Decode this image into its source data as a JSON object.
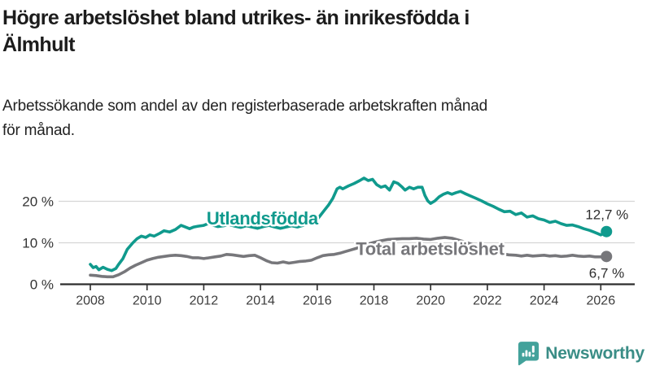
{
  "title": {
    "lines": [
      "Högre arbetslöshet bland utrikes- än inrikesfödda i",
      "Älmhult"
    ]
  },
  "subtitle": {
    "lines": [
      "Arbetssökande som andel av den registerbaserade arbetskraften månad",
      "för månad."
    ]
  },
  "logo": {
    "text": "Newsworthy",
    "icon_name": "newsworthy-speech-bubble-bar-chart-icon",
    "icon_color": "#43a29b",
    "text_color": "#3a8d86"
  },
  "chart_data": {
    "type": "line",
    "title": "Högre arbetslöshet bland utrikes- än inrikesfödda i Älmhult",
    "subtitle": "Arbetssökande som andel av den registerbaserade arbetskraften månad för månad.",
    "xlabel": "",
    "ylabel": "",
    "x_range": [
      2007.9,
      2026.3
    ],
    "ylim": [
      0,
      27
    ],
    "grid": "horizontal",
    "x_ticks": [
      2008,
      2010,
      2012,
      2014,
      2016,
      2018,
      2020,
      2022,
      2024,
      2026
    ],
    "y_ticks": [
      {
        "v": 0,
        "label": "0 %"
      },
      {
        "v": 10,
        "label": "10 %"
      },
      {
        "v": 20,
        "label": "20 %"
      }
    ],
    "colors": {
      "gridline": "#d6d6d6",
      "axis": "#2d2d2d",
      "tick_label": "#3c3c3c"
    },
    "legend_position": "inline-labels",
    "series": [
      {
        "name": "Utlandsfödda",
        "color": "#109a8d",
        "end_label": "12,7 %",
        "end_value": 12.7,
        "label_pos": {
          "year": 2012.1,
          "pct": 14.4
        },
        "points": [
          [
            2008.0,
            4.8
          ],
          [
            2008.1,
            4.0
          ],
          [
            2008.2,
            4.3
          ],
          [
            2008.3,
            3.5
          ],
          [
            2008.45,
            4.1
          ],
          [
            2008.6,
            3.6
          ],
          [
            2008.75,
            3.3
          ],
          [
            2008.9,
            3.8
          ],
          [
            2009.0,
            4.8
          ],
          [
            2009.15,
            6.2
          ],
          [
            2009.3,
            8.4
          ],
          [
            2009.5,
            10.0
          ],
          [
            2009.65,
            11.0
          ],
          [
            2009.8,
            11.6
          ],
          [
            2009.95,
            11.3
          ],
          [
            2010.1,
            11.9
          ],
          [
            2010.25,
            11.6
          ],
          [
            2010.45,
            12.3
          ],
          [
            2010.6,
            12.9
          ],
          [
            2010.8,
            12.6
          ],
          [
            2011.0,
            13.2
          ],
          [
            2011.2,
            14.2
          ],
          [
            2011.35,
            13.8
          ],
          [
            2011.5,
            13.4
          ],
          [
            2011.65,
            13.8
          ],
          [
            2011.8,
            14.0
          ],
          [
            2012.0,
            14.2
          ],
          [
            2012.15,
            14.6
          ],
          [
            2012.3,
            14.3
          ],
          [
            2012.5,
            13.9
          ],
          [
            2012.7,
            14.1
          ],
          [
            2012.9,
            14.4
          ],
          [
            2013.1,
            14.0
          ],
          [
            2013.3,
            13.7
          ],
          [
            2013.5,
            14.1
          ],
          [
            2013.7,
            13.8
          ],
          [
            2013.9,
            13.5
          ],
          [
            2014.1,
            13.9
          ],
          [
            2014.3,
            14.2
          ],
          [
            2014.5,
            13.8
          ],
          [
            2014.7,
            13.5
          ],
          [
            2014.9,
            13.8
          ],
          [
            2015.1,
            14.1
          ],
          [
            2015.3,
            13.8
          ],
          [
            2015.5,
            14.2
          ],
          [
            2015.7,
            14.6
          ],
          [
            2015.9,
            15.1
          ],
          [
            2016.0,
            15.6
          ],
          [
            2016.1,
            16.5
          ],
          [
            2016.25,
            17.8
          ],
          [
            2016.4,
            19.1
          ],
          [
            2016.55,
            20.7
          ],
          [
            2016.7,
            23.0
          ],
          [
            2016.8,
            23.4
          ],
          [
            2016.9,
            23.0
          ],
          [
            2017.1,
            23.7
          ],
          [
            2017.3,
            24.3
          ],
          [
            2017.5,
            25.0
          ],
          [
            2017.65,
            25.6
          ],
          [
            2017.8,
            25.0
          ],
          [
            2017.95,
            25.3
          ],
          [
            2018.1,
            24.0
          ],
          [
            2018.25,
            23.4
          ],
          [
            2018.4,
            23.7
          ],
          [
            2018.55,
            22.7
          ],
          [
            2018.7,
            24.7
          ],
          [
            2018.85,
            24.3
          ],
          [
            2019.0,
            23.4
          ],
          [
            2019.1,
            22.7
          ],
          [
            2019.25,
            23.4
          ],
          [
            2019.4,
            23.0
          ],
          [
            2019.55,
            23.4
          ],
          [
            2019.7,
            23.4
          ],
          [
            2019.8,
            21.4
          ],
          [
            2019.9,
            20.1
          ],
          [
            2020.0,
            19.5
          ],
          [
            2020.15,
            20.1
          ],
          [
            2020.3,
            21.1
          ],
          [
            2020.45,
            21.7
          ],
          [
            2020.6,
            22.1
          ],
          [
            2020.75,
            21.7
          ],
          [
            2020.9,
            22.1
          ],
          [
            2021.05,
            22.4
          ],
          [
            2021.2,
            21.9
          ],
          [
            2021.4,
            21.3
          ],
          [
            2021.6,
            20.7
          ],
          [
            2021.8,
            20.1
          ],
          [
            2022.0,
            19.4
          ],
          [
            2022.2,
            18.8
          ],
          [
            2022.4,
            18.1
          ],
          [
            2022.6,
            17.5
          ],
          [
            2022.8,
            17.6
          ],
          [
            2023.0,
            16.8
          ],
          [
            2023.2,
            17.2
          ],
          [
            2023.4,
            16.2
          ],
          [
            2023.6,
            16.5
          ],
          [
            2023.8,
            15.8
          ],
          [
            2024.0,
            15.5
          ],
          [
            2024.2,
            14.9
          ],
          [
            2024.4,
            15.2
          ],
          [
            2024.6,
            14.6
          ],
          [
            2024.8,
            14.2
          ],
          [
            2025.0,
            14.3
          ],
          [
            2025.2,
            13.9
          ],
          [
            2025.4,
            13.4
          ],
          [
            2025.6,
            13.0
          ],
          [
            2025.75,
            12.6
          ],
          [
            2025.9,
            12.2
          ],
          [
            2026.0,
            11.9
          ],
          [
            2026.2,
            12.7
          ]
        ]
      },
      {
        "name": "Total arbetslöshet",
        "color": "#77777b",
        "end_label": "6,7 %",
        "end_value": 6.7,
        "label_pos": {
          "year": 2017.36,
          "pct": 7.1
        },
        "points": [
          [
            2008.0,
            2.2
          ],
          [
            2008.2,
            2.1
          ],
          [
            2008.4,
            1.9
          ],
          [
            2008.6,
            1.8
          ],
          [
            2008.8,
            1.8
          ],
          [
            2009.0,
            2.3
          ],
          [
            2009.2,
            3.0
          ],
          [
            2009.4,
            3.9
          ],
          [
            2009.6,
            4.6
          ],
          [
            2009.8,
            5.2
          ],
          [
            2010.0,
            5.8
          ],
          [
            2010.2,
            6.2
          ],
          [
            2010.4,
            6.5
          ],
          [
            2010.6,
            6.7
          ],
          [
            2010.8,
            6.9
          ],
          [
            2011.0,
            7.0
          ],
          [
            2011.2,
            6.9
          ],
          [
            2011.4,
            6.7
          ],
          [
            2011.6,
            6.4
          ],
          [
            2011.8,
            6.4
          ],
          [
            2012.0,
            6.2
          ],
          [
            2012.2,
            6.4
          ],
          [
            2012.4,
            6.6
          ],
          [
            2012.6,
            6.8
          ],
          [
            2012.8,
            7.2
          ],
          [
            2013.0,
            7.1
          ],
          [
            2013.2,
            6.9
          ],
          [
            2013.4,
            6.7
          ],
          [
            2013.6,
            6.9
          ],
          [
            2013.8,
            7.0
          ],
          [
            2014.0,
            6.4
          ],
          [
            2014.2,
            5.7
          ],
          [
            2014.4,
            5.2
          ],
          [
            2014.6,
            5.1
          ],
          [
            2014.8,
            5.4
          ],
          [
            2015.0,
            5.1
          ],
          [
            2015.2,
            5.3
          ],
          [
            2015.4,
            5.5
          ],
          [
            2015.6,
            5.6
          ],
          [
            2015.8,
            5.8
          ],
          [
            2016.0,
            6.4
          ],
          [
            2016.2,
            6.9
          ],
          [
            2016.4,
            7.1
          ],
          [
            2016.6,
            7.2
          ],
          [
            2016.8,
            7.5
          ],
          [
            2017.0,
            7.9
          ],
          [
            2017.2,
            8.3
          ],
          [
            2017.4,
            8.7
          ],
          [
            2017.6,
            9.2
          ],
          [
            2017.8,
            9.7
          ],
          [
            2018.0,
            10.1
          ],
          [
            2018.25,
            10.5
          ],
          [
            2018.5,
            10.8
          ],
          [
            2018.75,
            10.9
          ],
          [
            2019.0,
            11.0
          ],
          [
            2019.25,
            11.0
          ],
          [
            2019.5,
            11.1
          ],
          [
            2019.75,
            10.9
          ],
          [
            2020.0,
            10.8
          ],
          [
            2020.25,
            11.1
          ],
          [
            2020.5,
            11.3
          ],
          [
            2020.75,
            11.1
          ],
          [
            2021.0,
            10.6
          ],
          [
            2021.25,
            10.1
          ],
          [
            2021.5,
            9.5
          ],
          [
            2021.75,
            8.9
          ],
          [
            2022.0,
            8.3
          ],
          [
            2022.25,
            7.8
          ],
          [
            2022.5,
            7.4
          ],
          [
            2022.75,
            7.1
          ],
          [
            2023.0,
            7.0
          ],
          [
            2023.2,
            6.8
          ],
          [
            2023.4,
            7.0
          ],
          [
            2023.6,
            6.8
          ],
          [
            2023.8,
            6.9
          ],
          [
            2024.0,
            7.0
          ],
          [
            2024.2,
            6.8
          ],
          [
            2024.4,
            6.9
          ],
          [
            2024.6,
            6.7
          ],
          [
            2024.8,
            6.8
          ],
          [
            2025.0,
            7.0
          ],
          [
            2025.2,
            6.8
          ],
          [
            2025.4,
            6.7
          ],
          [
            2025.6,
            6.8
          ],
          [
            2025.8,
            6.6
          ],
          [
            2026.0,
            6.6
          ],
          [
            2026.2,
            6.7
          ]
        ]
      }
    ]
  }
}
